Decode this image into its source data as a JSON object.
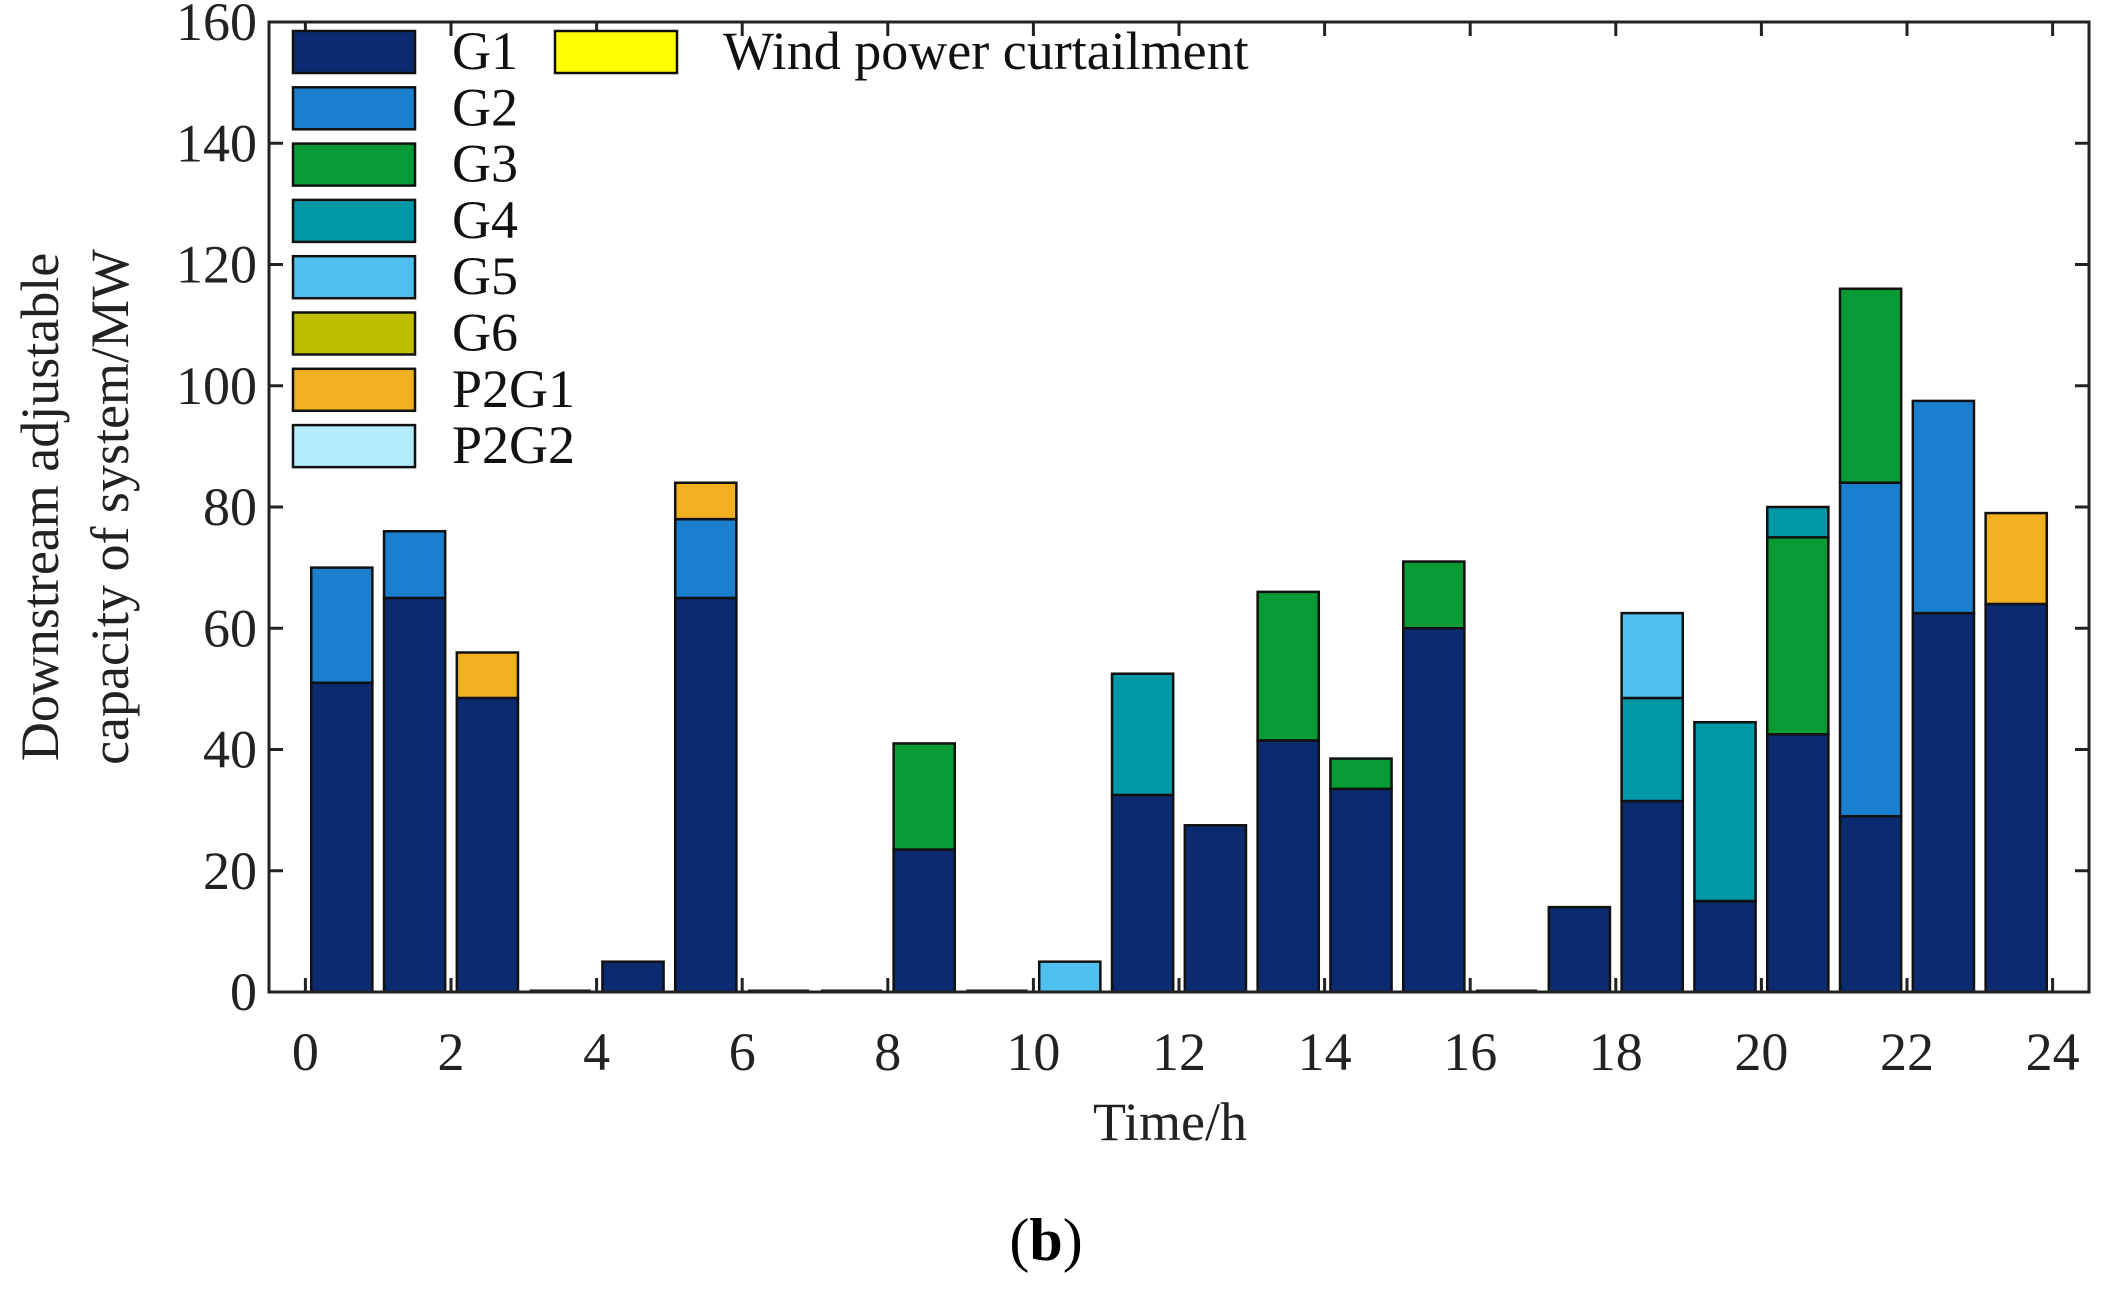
{
  "chart_data": {
    "type": "bar",
    "stacked": true,
    "title": "",
    "xlabel": "Time/h",
    "ylabel_line1": "Downstream adjustable",
    "ylabel_line2": "capacity of system/MW",
    "xlim": [
      -0.5,
      24.5
    ],
    "ylim": [
      0,
      160
    ],
    "x_ticks": [
      0,
      2,
      4,
      6,
      8,
      10,
      12,
      14,
      16,
      18,
      20,
      22,
      24
    ],
    "x_tick_labels": [
      "0",
      "2",
      "4",
      "6",
      "8",
      "10",
      "12",
      "14",
      "16",
      "18",
      "20",
      "22",
      "24"
    ],
    "y_ticks": [
      0,
      20,
      40,
      60,
      80,
      100,
      120,
      140,
      160
    ],
    "y_tick_labels": [
      "0",
      "20",
      "40",
      "60",
      "80",
      "100",
      "120",
      "140",
      "160"
    ],
    "x": [
      0,
      1,
      2,
      3,
      4,
      5,
      6,
      7,
      8,
      9,
      10,
      11,
      12,
      13,
      14,
      15,
      16,
      17,
      18,
      19,
      20,
      21,
      22,
      23
    ],
    "series": [
      {
        "name": "G1",
        "color": "#0c2a70",
        "values": [
          51,
          65,
          48.5,
          0,
          5,
          65,
          0,
          0,
          23.5,
          0,
          0,
          32.5,
          27.5,
          41.5,
          33.5,
          60,
          0,
          14,
          31.5,
          15,
          42.5,
          29,
          62.5,
          64
        ]
      },
      {
        "name": "G2",
        "color": "#1a7fcf",
        "values": [
          19,
          11,
          0,
          0,
          0,
          13,
          0,
          0,
          0,
          0,
          0,
          0,
          0,
          0,
          0,
          0,
          0,
          0,
          0,
          0,
          0,
          55,
          35,
          0
        ]
      },
      {
        "name": "G3",
        "color": "#079a35",
        "values": [
          0,
          0,
          0,
          0,
          0,
          0,
          0,
          0,
          17.5,
          0,
          0,
          0,
          0,
          24.5,
          5,
          11,
          0,
          0,
          0,
          0,
          32.5,
          32,
          0,
          0
        ]
      },
      {
        "name": "G4",
        "color": "#0097a7",
        "values": [
          0,
          0,
          0,
          0,
          0,
          0,
          0,
          0,
          0,
          0,
          0,
          20,
          0,
          0,
          0,
          0,
          0,
          0,
          17,
          29.5,
          5,
          0,
          0,
          0
        ]
      },
      {
        "name": "G5",
        "color": "#4fc0ee",
        "values": [
          0,
          0,
          0,
          0,
          0,
          0,
          0,
          0,
          0,
          0,
          5,
          0,
          0,
          0,
          0,
          0,
          0,
          0,
          14,
          0,
          0,
          0,
          0,
          0
        ]
      },
      {
        "name": "G6",
        "color": "#bfbf00",
        "values": [
          0,
          0,
          0,
          0,
          0,
          0,
          0,
          0,
          0,
          0,
          0,
          0,
          0,
          0,
          0,
          0,
          0,
          0,
          0,
          0,
          0,
          0,
          0,
          0
        ]
      },
      {
        "name": "P2G1",
        "color": "#f0b020",
        "values": [
          0,
          0,
          7.5,
          0,
          0,
          6,
          0,
          0,
          0,
          0,
          0,
          0,
          0,
          0,
          0,
          0,
          0,
          0,
          0,
          0,
          0,
          0,
          0,
          15
        ]
      },
      {
        "name": "P2G2",
        "color": "#b3ecfc",
        "values": [
          0,
          0,
          0,
          0,
          0,
          0,
          0,
          0,
          0,
          0,
          0,
          0,
          0,
          0,
          0,
          0,
          0,
          0,
          0,
          0,
          0,
          0,
          0,
          0
        ]
      },
      {
        "name": "Wind power curtailment",
        "color": "#ffff00",
        "values": [
          0,
          0,
          0,
          0,
          0,
          0,
          0,
          0,
          0,
          0,
          0,
          0,
          0,
          0,
          0,
          0,
          0,
          0,
          0,
          0,
          0,
          0,
          0,
          0
        ]
      }
    ],
    "legend": "top-left",
    "grid": false
  },
  "caption": {
    "open": "(",
    "letter": "b",
    "close": ")"
  }
}
